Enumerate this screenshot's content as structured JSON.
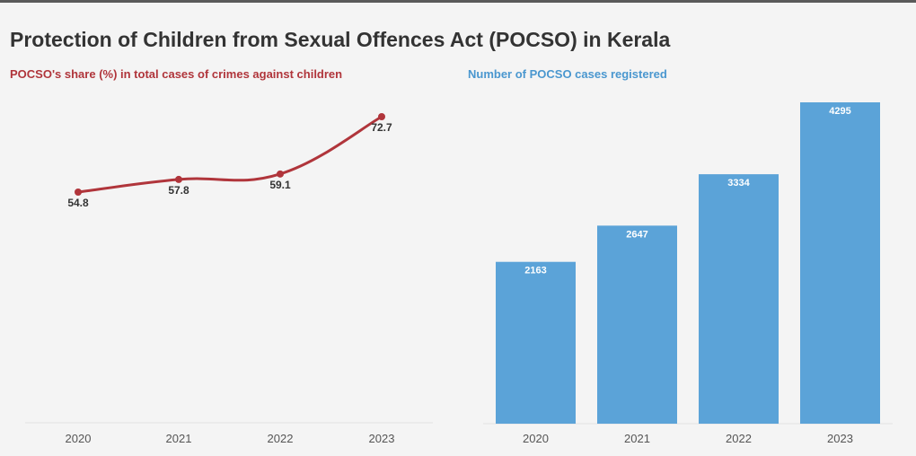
{
  "title": "Protection of Children from Sexual Offences Act (POCSO) in Kerala",
  "colors": {
    "line": "#b0353b",
    "bar": "#5ba3d8",
    "line_subtitle": "#b0353b",
    "bar_subtitle": "#4a97cf"
  },
  "chart_data": [
    {
      "type": "line",
      "title": "POCSO's share (%) in total cases of crimes against children",
      "categories": [
        "2020",
        "2021",
        "2022",
        "2023"
      ],
      "values": [
        54.8,
        57.8,
        59.1,
        72.7
      ],
      "value_labels": [
        "54.8",
        "57.8",
        "59.1",
        "72.7"
      ],
      "xlabel": "",
      "ylabel": "",
      "ylim": [
        0,
        80
      ],
      "grid": false
    },
    {
      "type": "bar",
      "title": "Number of POCSO cases registered",
      "categories": [
        "2020",
        "2021",
        "2022",
        "2023"
      ],
      "values": [
        2163,
        2647,
        3334,
        4295
      ],
      "value_labels": [
        "2163",
        "2647",
        "3334",
        "4295"
      ],
      "xlabel": "",
      "ylabel": "",
      "ylim": [
        0,
        4295
      ],
      "grid": false
    }
  ]
}
